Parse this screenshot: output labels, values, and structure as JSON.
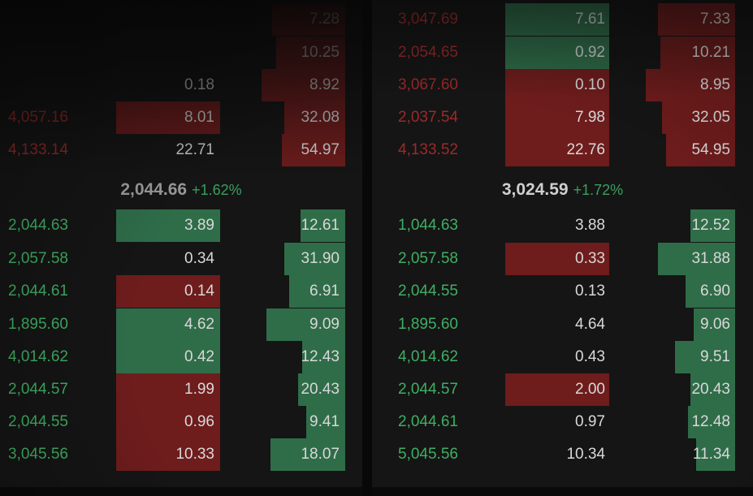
{
  "colors": {
    "buy_green": "#3fae63",
    "sell_red": "#9b2a2a",
    "green_bar": "#2f6d49",
    "red_bar": "#6e1c1c",
    "neutral_text": "#d8d8d8",
    "panel_bg": "#151515"
  },
  "left_book": {
    "asks": [
      {
        "price": "",
        "amount": "",
        "total": "7.28"
      },
      {
        "price": "",
        "amount": "",
        "total": "10.25"
      },
      {
        "price": "",
        "amount": "0.18",
        "total": "8.92"
      },
      {
        "price": "4,057.16",
        "amount": "8.01",
        "total": "32.08"
      },
      {
        "price": "4,133.14",
        "amount": "22.71",
        "total": "54.97"
      }
    ],
    "mid": {
      "price": "2,044.66",
      "change": "+1.62%"
    },
    "bids": [
      {
        "price": "2,044.63",
        "amount": "3.89",
        "total": "12.61"
      },
      {
        "price": "2,057.58",
        "amount": "0.34",
        "total": "31.90"
      },
      {
        "price": "2,044.61",
        "amount": "0.14",
        "total": "6.91"
      },
      {
        "price": "1,895.60",
        "amount": "4.62",
        "total": "9.09"
      },
      {
        "price": "4,014.62",
        "amount": "0.42",
        "total": "12.43"
      },
      {
        "price": "2,044.57",
        "amount": "1.99",
        "total": "20.43"
      },
      {
        "price": "2,044.55",
        "amount": "0.96",
        "total": "9.41"
      },
      {
        "price": "3,045.56",
        "amount": "10.33",
        "total": "18.07"
      }
    ]
  },
  "right_book": {
    "asks": [
      {
        "price": "3,047.69",
        "amount": "7.61",
        "total": "7.33"
      },
      {
        "price": "2,054.65",
        "amount": "0.92",
        "total": "10.21"
      },
      {
        "price": "3,067.60",
        "amount": "0.10",
        "total": "8.95"
      },
      {
        "price": "2,037.54",
        "amount": "7.98",
        "total": "32.05"
      },
      {
        "price": "4,133.52",
        "amount": "22.76",
        "total": "54.95"
      }
    ],
    "mid": {
      "price": "3,024.59",
      "change": "+1.72%"
    },
    "bids": [
      {
        "price": "1,044.63",
        "amount": "3.88",
        "total": "12.52"
      },
      {
        "price": "2,057.58",
        "amount": "0.33",
        "total": "31.88"
      },
      {
        "price": "2,044.55",
        "amount": "0.13",
        "total": "6.90"
      },
      {
        "price": "1,895.60",
        "amount": "4.64",
        "total": "9.06"
      },
      {
        "price": "4,014.62",
        "amount": "0.43",
        "total": "9.51"
      },
      {
        "price": "2,044.57",
        "amount": "2.00",
        "total": "20.43"
      },
      {
        "price": "2,044.61",
        "amount": "0.97",
        "total": "12.48"
      },
      {
        "price": "5,045.56",
        "amount": "10.34",
        "total": "11.34"
      }
    ]
  }
}
